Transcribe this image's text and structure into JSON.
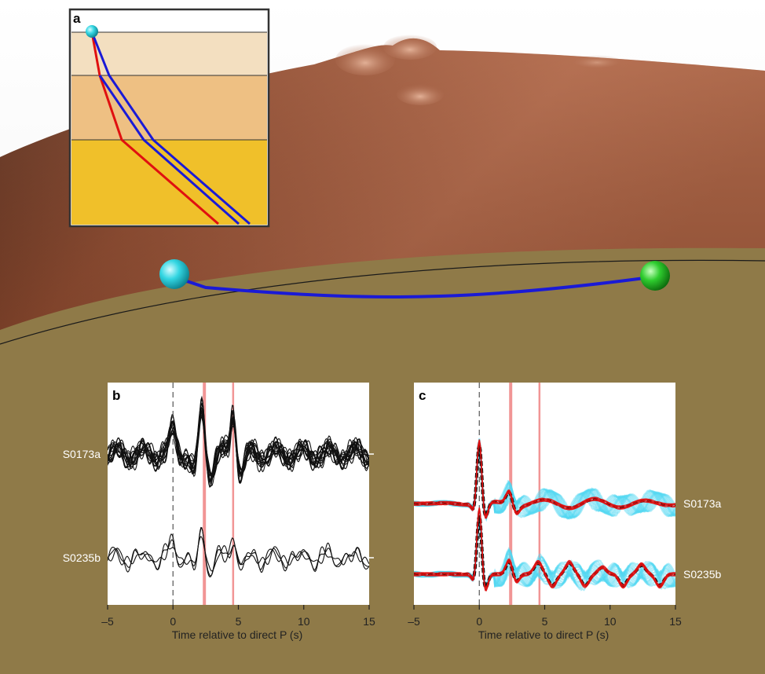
{
  "colors": {
    "terrain_light": "#b9765a",
    "terrain_dark": "#5a2c1a",
    "ground": "#8f7a48",
    "ray_blue": "#1a1ad6",
    "ray_red": "#e01010",
    "source_cyan": "#2fd5de",
    "receiver_green": "#2ecc2e",
    "arrival_pink": "#f08a8a",
    "cyan_envelope": "#4fd8f2",
    "layer_top": "#f3dfc0",
    "layer_mid": "#eec083",
    "layer_bottom": "#f0c02a"
  },
  "icons": {
    "source": "cyan-sphere",
    "receiver": "green-sphere"
  },
  "panel_a": {
    "letter": "a"
  },
  "panel_b": {
    "letter": "b",
    "xlabel": "Time relative to direct P (s)",
    "xticks": [
      "–5",
      "0",
      "5",
      "10",
      "15"
    ],
    "trace_labels": [
      "S0173a",
      "S0235b"
    ]
  },
  "panel_c": {
    "letter": "c",
    "xlabel": "Time relative to direct P (s)",
    "xticks": [
      "–5",
      "0",
      "5",
      "10",
      "15"
    ],
    "trace_labels": [
      "S0173a",
      "S0235b"
    ]
  },
  "chart_data": [
    {
      "panel": "b",
      "type": "line",
      "xlabel": "Time relative to direct P (s)",
      "xlim": [
        -5,
        15
      ],
      "xticks": [
        -5,
        0,
        5,
        10,
        15
      ],
      "traces": [
        "S0173a",
        "S0235b"
      ],
      "vertical_lines": [
        {
          "x": 0,
          "style": "dashed"
        },
        {
          "x": 2.4,
          "style": "solid-pink"
        },
        {
          "x": 4.6,
          "style": "solid-pink"
        }
      ]
    },
    {
      "panel": "c",
      "type": "line",
      "xlabel": "Time relative to direct P (s)",
      "xlim": [
        -5,
        15
      ],
      "xticks": [
        -5,
        0,
        5,
        10,
        15
      ],
      "traces": [
        "S0173a",
        "S0235b"
      ],
      "vertical_lines": [
        {
          "x": 0,
          "style": "dashed"
        },
        {
          "x": 2.4,
          "style": "solid-pink"
        },
        {
          "x": 4.6,
          "style": "solid-pink"
        }
      ]
    }
  ]
}
